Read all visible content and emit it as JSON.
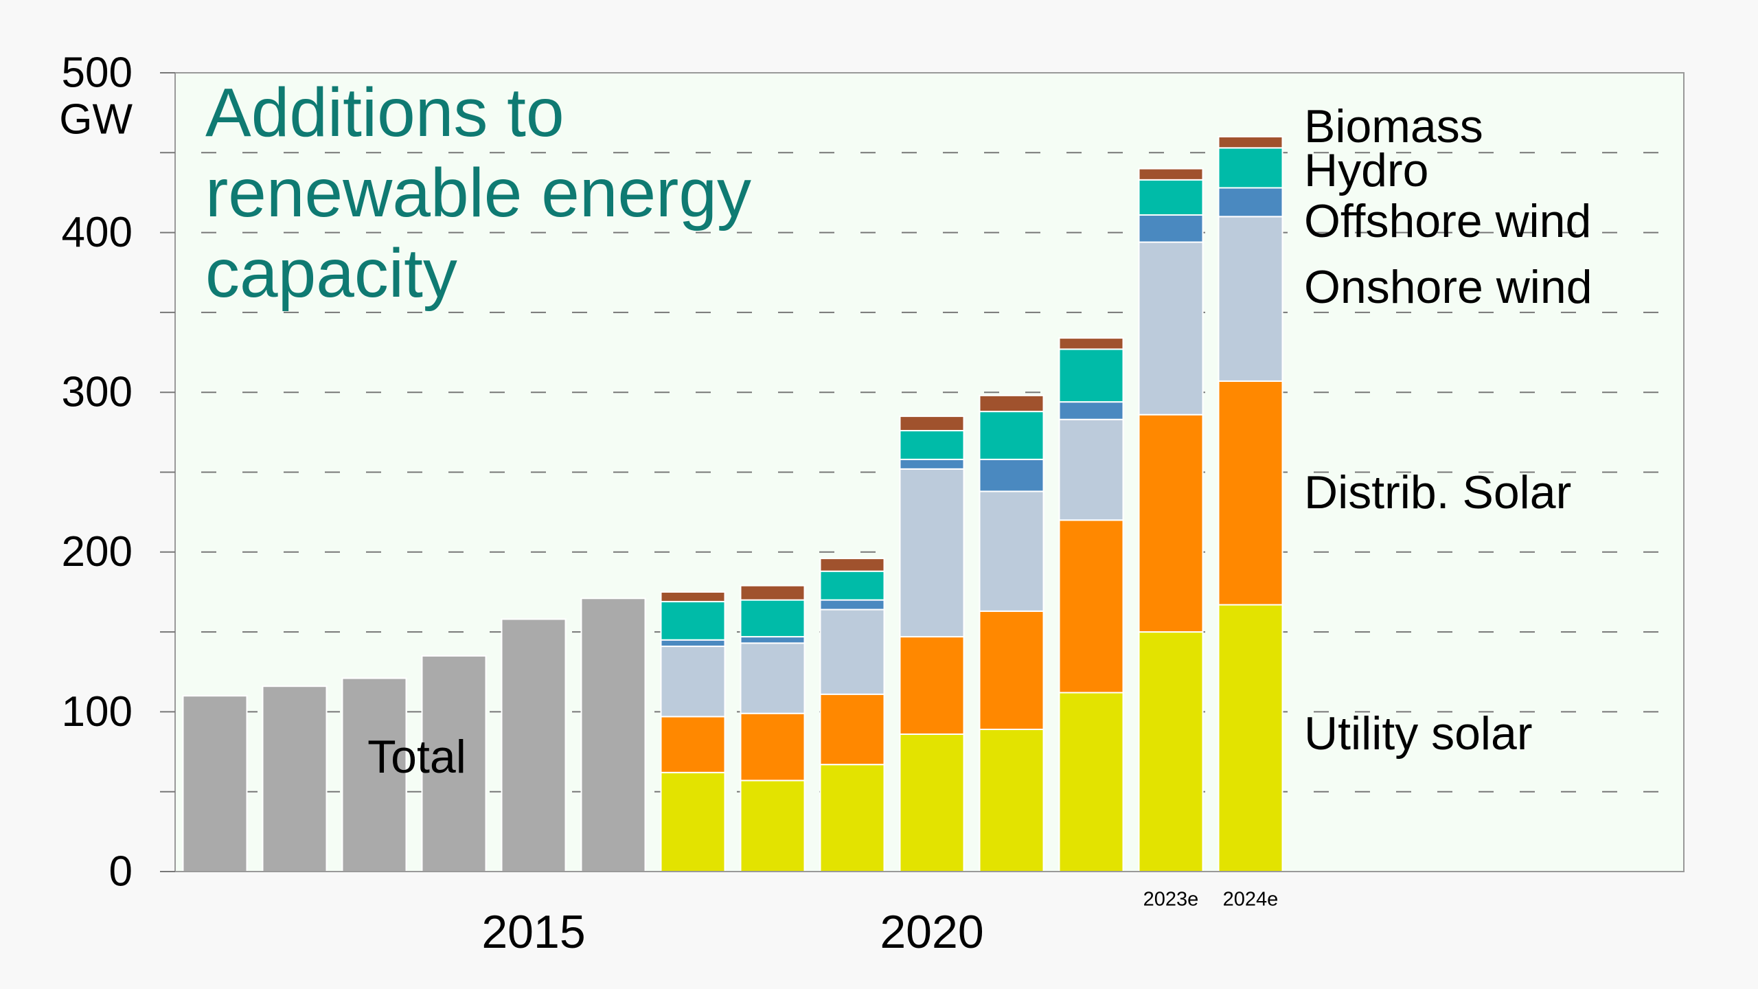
{
  "chart_data": {
    "type": "stacked_bar",
    "title": "Additions to renewable energy capacity",
    "y_unit": "GW",
    "categories": [
      null,
      null,
      null,
      null,
      "2015",
      null,
      null,
      null,
      null,
      "2020",
      null,
      null,
      "2023e",
      "2024e"
    ],
    "series": [
      {
        "name": "Total",
        "color": "#aaaaaa",
        "values": [
          110,
          116,
          121,
          135,
          158,
          171,
          null,
          null,
          null,
          null,
          null,
          null,
          null,
          null
        ]
      },
      {
        "name": "Utility solar",
        "color": "#e3e300",
        "values": [
          null,
          null,
          null,
          null,
          null,
          null,
          62,
          57,
          67,
          86,
          89,
          112,
          150,
          167
        ]
      },
      {
        "name": "Distrib. Solar",
        "color": "#ff8800",
        "values": [
          null,
          null,
          null,
          null,
          null,
          null,
          35,
          42,
          44,
          61,
          74,
          108,
          136,
          140
        ]
      },
      {
        "name": "Onshore wind",
        "color": "#bccbdb",
        "values": [
          null,
          null,
          null,
          null,
          null,
          null,
          44,
          44,
          53,
          105,
          75,
          63,
          108,
          103
        ]
      },
      {
        "name": "Offshore wind",
        "color": "#4a89c0",
        "values": [
          null,
          null,
          null,
          null,
          null,
          null,
          4,
          4,
          6,
          6,
          20,
          11,
          17,
          18
        ]
      },
      {
        "name": "Hydro",
        "color": "#00bba8",
        "values": [
          null,
          null,
          null,
          null,
          null,
          null,
          24,
          23,
          18,
          18,
          30,
          33,
          22,
          25
        ]
      },
      {
        "name": "Biomass",
        "color": "#a0522d",
        "values": [
          null,
          null,
          null,
          null,
          null,
          null,
          6,
          9,
          8,
          9,
          10,
          7,
          7,
          7
        ]
      }
    ],
    "ylim": [
      0,
      500
    ],
    "yticks": [
      0,
      100,
      200,
      300,
      400,
      500
    ],
    "minor_yticks": [
      50,
      150,
      250,
      350,
      450
    ],
    "grid": true
  }
}
